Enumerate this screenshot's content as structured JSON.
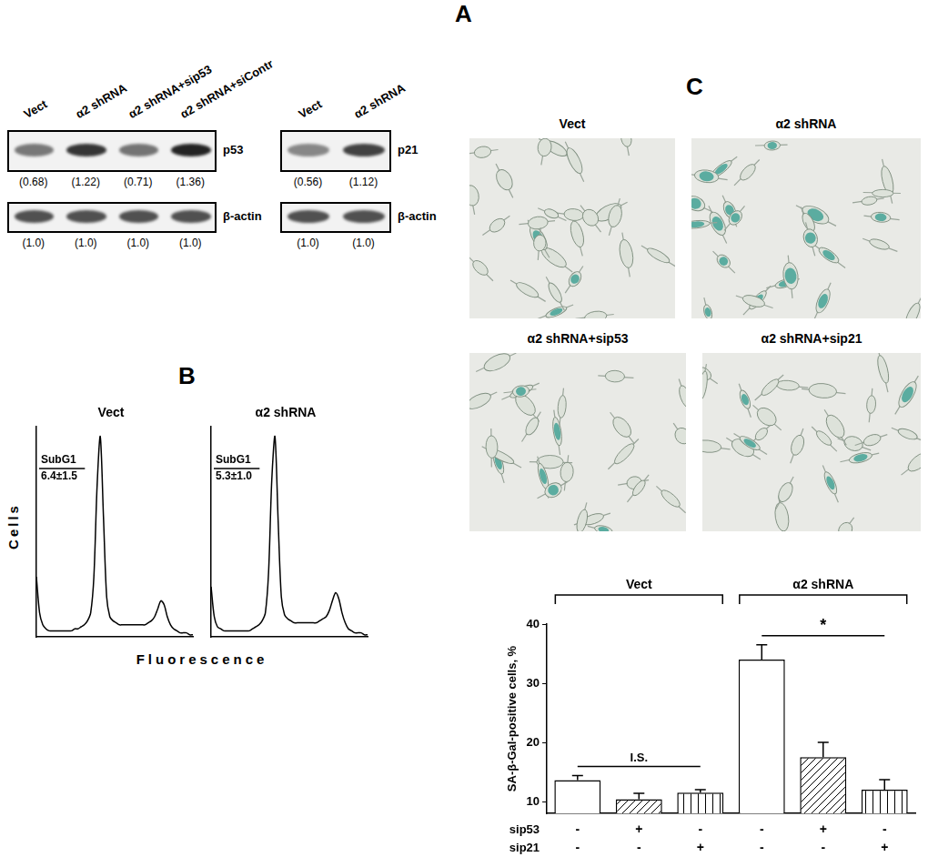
{
  "figure": {
    "A": {
      "label": "A",
      "blots": [
        {
          "lanes": [
            "Vect",
            "α2 shRNA",
            "α2 shRNA+sip53",
            "α2 shRNA+siContr"
          ],
          "rows": [
            {
              "protein": "p53",
              "values": [
                "(0.68)",
                "(1.22)",
                "(0.71)",
                "(1.36)"
              ]
            },
            {
              "protein": "β-actin",
              "values": [
                "(1.0)",
                "(1.0)",
                "(1.0)",
                "(1.0)"
              ]
            }
          ]
        },
        {
          "lanes": [
            "Vect",
            "α2 shRNA"
          ],
          "rows": [
            {
              "protein": "p21",
              "values": [
                "(0.56)",
                "(1.12)"
              ]
            },
            {
              "protein": "β-actin",
              "values": [
                "(1.0)",
                "(1.0)"
              ]
            }
          ]
        }
      ]
    },
    "B": {
      "label": "B",
      "y_label": "Cells",
      "x_label": "Fluorescence"
    },
    "C": {
      "label": "C",
      "images": [
        "Vect",
        "α2 shRNA",
        "α2 shRNA+sip53",
        "α2 shRNA+sip21"
      ]
    }
  },
  "chart_data": [
    {
      "type": "line",
      "title": "Vect",
      "x": [
        0,
        1,
        2,
        3,
        4,
        5,
        6,
        7,
        8,
        9,
        10,
        11,
        12,
        13,
        14,
        15,
        16,
        17,
        18,
        19,
        20,
        21,
        22,
        23,
        24,
        25,
        26,
        27,
        28,
        29,
        30,
        31,
        32,
        33,
        34,
        35,
        36,
        37,
        38,
        39,
        40,
        41,
        42,
        43,
        44,
        45,
        46,
        47,
        48,
        49
      ],
      "values": [
        30,
        12,
        6,
        4,
        3,
        3,
        3,
        3,
        3,
        3,
        3,
        3,
        4,
        4,
        5,
        6,
        8,
        12,
        30,
        75,
        100,
        60,
        20,
        10,
        8,
        7,
        6,
        6,
        6,
        6,
        6,
        6,
        6,
        6,
        6,
        7,
        8,
        10,
        14,
        18,
        16,
        10,
        6,
        4,
        3,
        2,
        2,
        2,
        1,
        1
      ],
      "xlim": [
        0,
        49
      ],
      "ylim": [
        0,
        105
      ],
      "tick_labels": false,
      "grid": false,
      "color": "#000000",
      "annotations": [
        "SubG1",
        "6.4±1.5"
      ]
    },
    {
      "type": "line",
      "title": "α2 shRNA",
      "x": [
        0,
        1,
        2,
        3,
        4,
        5,
        6,
        7,
        8,
        9,
        10,
        11,
        12,
        13,
        14,
        15,
        16,
        17,
        18,
        19,
        20,
        21,
        22,
        23,
        24,
        25,
        26,
        27,
        28,
        29,
        30,
        31,
        32,
        33,
        34,
        35,
        36,
        37,
        38,
        39,
        40,
        41,
        42,
        43,
        44,
        45,
        46,
        47,
        48,
        49
      ],
      "values": [
        25,
        10,
        5,
        4,
        3,
        3,
        3,
        3,
        3,
        3,
        3,
        3,
        3,
        4,
        5,
        6,
        8,
        12,
        32,
        78,
        100,
        58,
        20,
        11,
        9,
        8,
        7,
        7,
        7,
        7,
        7,
        7,
        7,
        7,
        8,
        9,
        10,
        13,
        18,
        22,
        19,
        12,
        7,
        4,
        3,
        2,
        2,
        2,
        1,
        1
      ],
      "xlim": [
        0,
        49
      ],
      "ylim": [
        0,
        105
      ],
      "tick_labels": false,
      "grid": false,
      "color": "#000000",
      "annotations": [
        "SubG1",
        "5.3±1.0"
      ]
    },
    {
      "type": "bar",
      "y_label": "SA-β-Gal-positive cells, %",
      "categories": [
        null,
        null,
        null,
        null,
        null,
        null
      ],
      "group": [
        "Vect",
        "Vect",
        "Vect",
        "α2 shRNA",
        "α2 shRNA",
        "α2 shRNA"
      ],
      "values": [
        13.6,
        10.4,
        11.5,
        34.0,
        17.5,
        12.0
      ],
      "errors": [
        0.8,
        1.0,
        0.5,
        2.5,
        2.5,
        1.7
      ],
      "conditions": [
        {
          "name": "sip53",
          "values": [
            "-",
            "+",
            "-",
            "-",
            "+",
            "-"
          ]
        },
        {
          "name": "sip21",
          "values": [
            "-",
            "-",
            "+",
            "-",
            "-",
            "+"
          ]
        }
      ],
      "annotations": [
        {
          "text": "I.S.",
          "group": "Vect"
        },
        {
          "text": "*",
          "group": "α2 shRNA"
        }
      ],
      "ylim": [
        8,
        40
      ],
      "yticks": [
        10,
        20,
        30,
        40
      ],
      "color": "#ffffff",
      "grid": false
    }
  ]
}
